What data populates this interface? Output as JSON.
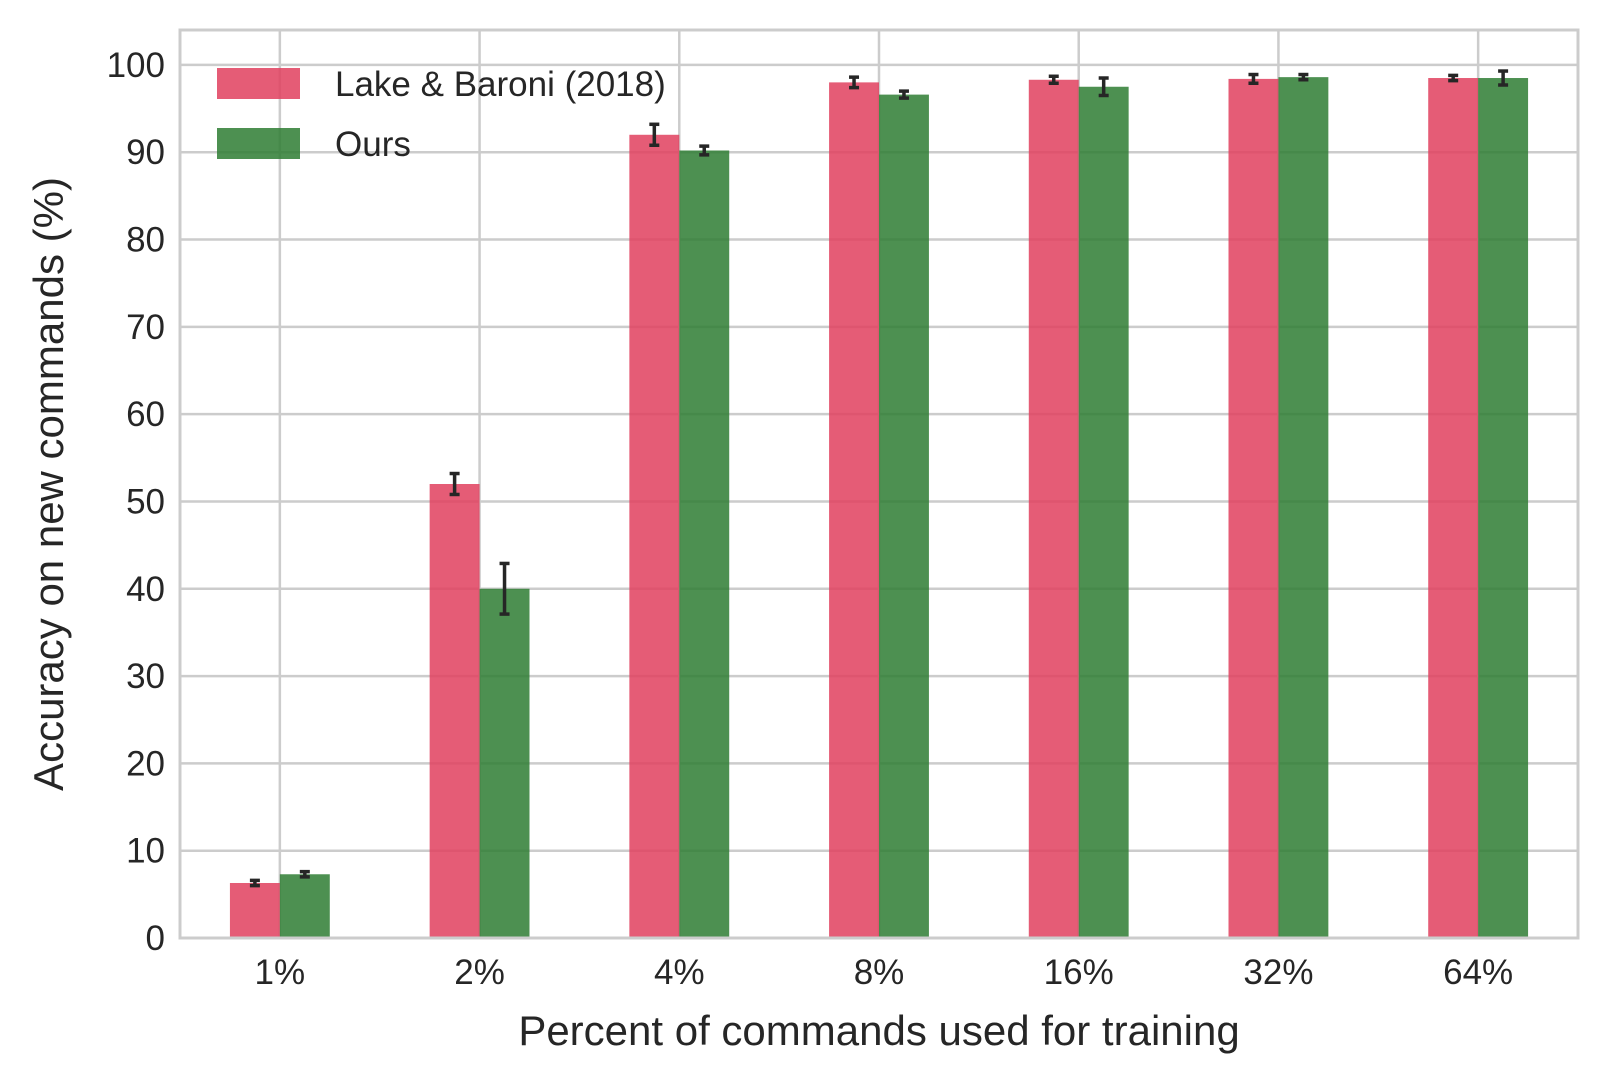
{
  "chart_data": {
    "type": "bar",
    "title": "",
    "xlabel": "Percent of commands used for training",
    "ylabel": "Accuracy on new commands (%)",
    "ylim": [
      0,
      104
    ],
    "yticks": [
      0,
      10,
      20,
      30,
      40,
      50,
      60,
      70,
      80,
      90,
      100
    ],
    "categories": [
      "1%",
      "2%",
      "4%",
      "8%",
      "16%",
      "32%",
      "64%"
    ],
    "grid": true,
    "legend_position": "top-left",
    "series": [
      {
        "name": "Lake & Baroni (2018)",
        "color": "#e0405e",
        "values": [
          6.3,
          52.0,
          92.0,
          98.0,
          98.3,
          98.4,
          98.5
        ],
        "errors": [
          0.3,
          1.2,
          1.2,
          0.6,
          0.4,
          0.5,
          0.3
        ]
      },
      {
        "name": "Ours",
        "color": "#2e7d32",
        "values": [
          7.3,
          40.0,
          90.2,
          96.6,
          97.5,
          98.6,
          98.5
        ],
        "errors": [
          0.3,
          2.9,
          0.5,
          0.4,
          1.0,
          0.3,
          0.8
        ]
      }
    ]
  }
}
